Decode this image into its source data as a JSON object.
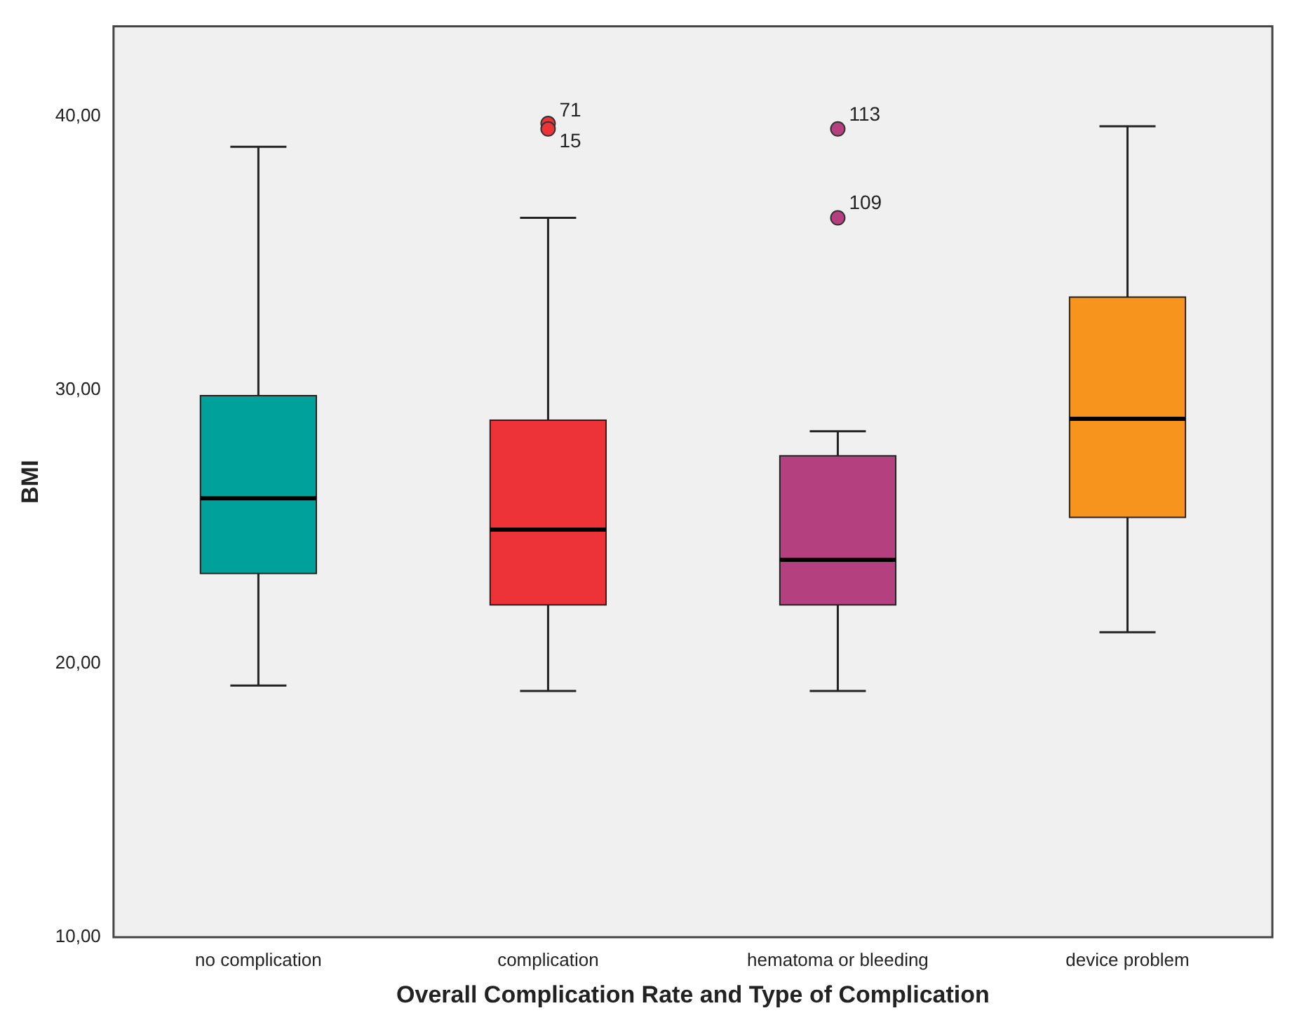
{
  "chart_data": {
    "type": "box",
    "xlabel": "Overall Complication Rate and Type of Complication",
    "ylabel": "BMI",
    "categories": [
      "no complication",
      "complication",
      "hematoma or bleeding",
      "device problem"
    ],
    "colors": [
      "#00a19b",
      "#ee3338",
      "#b5407f",
      "#f7941d"
    ],
    "boxes": [
      {
        "low": 19.2,
        "q1": 23.3,
        "median": 26.05,
        "q3": 29.8,
        "high": 38.9
      },
      {
        "low": 19.0,
        "q1": 22.15,
        "median": 24.9,
        "q3": 28.9,
        "high": 36.3,
        "outliers": [
          39.75,
          39.55
        ]
      },
      {
        "low": 19.0,
        "q1": 22.15,
        "median": 23.8,
        "q3": 27.6,
        "high": 28.5,
        "outliers": [
          39.55,
          36.3
        ]
      },
      {
        "low": 21.15,
        "q1": 25.35,
        "median": 28.95,
        "q3": 33.4,
        "high": 39.65
      }
    ],
    "ylim": [
      10,
      43.3
    ],
    "yticks": [
      {
        "value": 10,
        "label": "10,00"
      },
      {
        "value": 20,
        "label": "20,00"
      },
      {
        "value": 30,
        "label": "30,00"
      },
      {
        "value": 40,
        "label": "40,00"
      }
    ],
    "annotations": [
      "71",
      "15",
      "113",
      "109"
    ],
    "grid": false,
    "legend": false
  }
}
